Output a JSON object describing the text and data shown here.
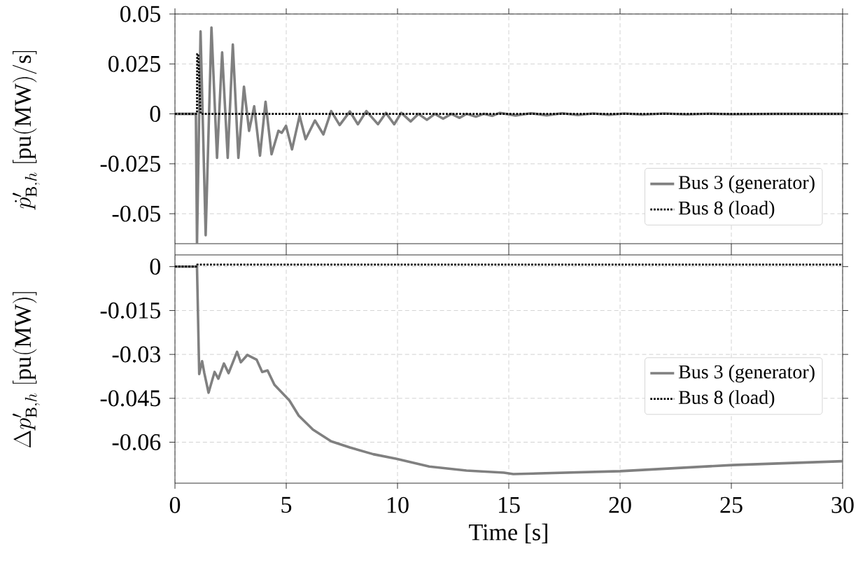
{
  "chart_data": [
    {
      "type": "line",
      "ylabel": "\\dot{p}'_{\\mathrm{B},h}\\ [\\mathrm{pu(MW)/s}]",
      "xlim": [
        0,
        30
      ],
      "xticks": [
        0,
        5,
        10,
        15,
        20,
        25,
        30
      ],
      "ylim": [
        -0.065,
        0.05
      ],
      "yticks": [
        -0.05,
        -0.025,
        0,
        0.025,
        0.05
      ],
      "grid": true,
      "legend": "bottom right",
      "tick_labels": "y",
      "series": [
        {
          "name": "Bus 3 (generator)",
          "color": "#808080",
          "line_style": "solid",
          "x": [
            0,
            0.94,
            0.99,
            1.15,
            1.38,
            1.64,
            1.89,
            2.12,
            2.37,
            2.6,
            2.85,
            3.1,
            3.33,
            3.56,
            3.82,
            4.07,
            4.34,
            4.65,
            4.8,
            4.99,
            5.26,
            5.6,
            5.87,
            6.29,
            6.67,
            7.02,
            7.4,
            7.86,
            8.22,
            8.6,
            9.12,
            9.48,
            9.85,
            10.17,
            10.59,
            10.94,
            11.32,
            11.68,
            12.05,
            12.42,
            12.79,
            13.1,
            13.52,
            13.88,
            14.26,
            14.6,
            15.3,
            16,
            16.7,
            17.4,
            18.1,
            18.8,
            19.5,
            20.2,
            21,
            22,
            23,
            24,
            25,
            27,
            30
          ],
          "values": [
            0,
            0,
            -0.065,
            0.0413,
            -0.0608,
            0.0432,
            -0.022,
            0.0308,
            -0.022,
            0.0347,
            -0.022,
            0.0136,
            -0.0085,
            0.0038,
            -0.0209,
            0.0061,
            -0.0202,
            -0.0085,
            -0.0095,
            -0.006,
            -0.0178,
            -0.001,
            -0.0127,
            -0.0033,
            -0.0103,
            0.0014,
            -0.0056,
            0.0012,
            -0.0052,
            0.0014,
            -0.0052,
            0.0005,
            -0.0052,
            0.0005,
            -0.0038,
            0,
            -0.003,
            0,
            -0.0024,
            0,
            -0.002,
            0,
            -0.0014,
            0,
            -0.001,
            0.0005,
            -0.0008,
            0.0003,
            -0.0007,
            0.0003,
            -0.0006,
            0.0002,
            -0.0005,
            0.0002,
            -0.0004,
            0.0002,
            -0.0003,
            0.0001,
            -0.0002,
            0,
            0
          ]
        },
        {
          "name": "Bus 8 (load)",
          "color": "#000000",
          "line_style": "dotted",
          "x": [
            0,
            0.99,
            1.0,
            1.05,
            1.15,
            30
          ],
          "values": [
            0,
            0,
            0.03,
            0.03,
            0,
            0
          ]
        }
      ]
    },
    {
      "type": "line",
      "xlabel": "Time [s]",
      "ylabel": "\\Delta p'_{\\mathrm{B},h}\\ [\\mathrm{pu(MW)}]",
      "xlim": [
        0,
        30
      ],
      "xticks": [
        0,
        5,
        10,
        15,
        20,
        25,
        30
      ],
      "ylim": [
        -0.074,
        0.004
      ],
      "yticks": [
        -0.06,
        -0.045,
        -0.03,
        -0.015,
        0
      ],
      "grid": true,
      "legend": "bottom right",
      "series": [
        {
          "name": "Bus 3 (generator)",
          "color": "#808080",
          "line_style": "solid",
          "x": [
            0,
            0.99,
            1.09,
            1.22,
            1.32,
            1.51,
            1.78,
            1.95,
            2.2,
            2.41,
            2.79,
            2.96,
            3.25,
            3.67,
            3.92,
            4.16,
            4.47,
            5.14,
            5.56,
            6.2,
            7.02,
            7.86,
            8.91,
            9.96,
            11.43,
            13.1,
            14.78,
            15.2,
            20.0,
            25.05,
            30
          ],
          "values": [
            0,
            0,
            -0.0367,
            -0.0323,
            -0.0364,
            -0.0431,
            -0.036,
            -0.0383,
            -0.0331,
            -0.0364,
            -0.0291,
            -0.0327,
            -0.0302,
            -0.0318,
            -0.036,
            -0.0355,
            -0.0404,
            -0.0457,
            -0.0509,
            -0.0557,
            -0.0597,
            -0.0618,
            -0.0641,
            -0.0657,
            -0.0683,
            -0.0697,
            -0.0704,
            -0.0709,
            -0.0699,
            -0.0678,
            -0.0665
          ]
        },
        {
          "name": "Bus 8 (load)",
          "color": "#000000",
          "line_style": "dotted",
          "x": [
            0,
            0.99,
            1.0,
            30
          ],
          "values": [
            0,
            0,
            0.0007,
            0.0007
          ]
        }
      ]
    }
  ]
}
